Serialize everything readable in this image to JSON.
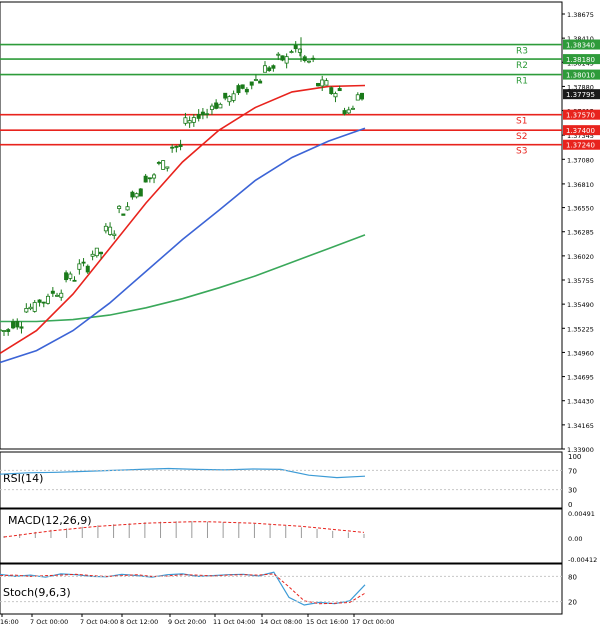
{
  "chart_data": {
    "type": "candlestick",
    "timeframe_note": "",
    "price_axis": {
      "ticks": [
        "1.38675",
        "1.38410",
        "1.38145",
        "1.37880",
        "1.37615",
        "1.37345",
        "1.37080",
        "1.36810",
        "1.36550",
        "1.36285",
        "1.36020",
        "1.35755",
        "1.35490",
        "1.35225",
        "1.34960",
        "1.34695",
        "1.34430",
        "1.34165",
        "1.33900"
      ],
      "ylim": [
        1.339,
        1.3872
      ],
      "current_price": "1.37795"
    },
    "levels": [
      {
        "label": "R3",
        "value": 1.3834,
        "value_text": "1.38340",
        "color": "#2e9b3a"
      },
      {
        "label": "R2",
        "value": 1.3818,
        "value_text": "1.38180",
        "color": "#2e9b3a"
      },
      {
        "label": "R1",
        "value": 1.3801,
        "value_text": "1.38010",
        "color": "#2e9b3a"
      },
      {
        "label": "S1",
        "value": 1.3757,
        "value_text": "1.37570",
        "color": "#e8231d"
      },
      {
        "label": "S2",
        "value": 1.374,
        "value_text": "1.37400",
        "color": "#e8231d"
      },
      {
        "label": "S3",
        "value": 1.3724,
        "value_text": "1.37240",
        "color": "#e8231d"
      }
    ],
    "candle_anchors": [
      1.352,
      1.3528,
      1.3545,
      1.3553,
      1.3562,
      1.3578,
      1.359,
      1.3605,
      1.363,
      1.3652,
      1.3672,
      1.3688,
      1.3702,
      1.3722,
      1.3748,
      1.3758,
      1.3768,
      1.3775,
      1.3785,
      1.3795,
      1.3808,
      1.3818,
      1.3828,
      1.3815,
      1.379,
      1.3782,
      1.3762,
      1.3779
    ],
    "ema_fast": [
      1.3495,
      1.352,
      1.356,
      1.361,
      1.366,
      1.3705,
      1.374,
      1.3765,
      1.3782,
      1.3788,
      1.3789
    ],
    "ema_mid": [
      1.3485,
      1.3498,
      1.352,
      1.355,
      1.3585,
      1.362,
      1.3652,
      1.3685,
      1.371,
      1.3728,
      1.3742
    ],
    "ema_slow": [
      1.353,
      1.353,
      1.3532,
      1.3537,
      1.3545,
      1.3555,
      1.3567,
      1.358,
      1.3595,
      1.361,
      1.3625
    ],
    "x_labels": [
      "16:00",
      "7 Oct 00:00",
      "7 Oct 04:00",
      "8 Oct 12:00",
      "9 Oct 20:00",
      "11 Oct 04:00",
      "14 Oct 08:00",
      "15 Oct 16:00",
      "17 Oct 00:00"
    ],
    "rsi": {
      "label": "RSI(14)",
      "ticks": [
        "100",
        "70",
        "30",
        "0"
      ],
      "values": [
        62,
        65,
        66,
        68,
        70,
        72,
        74,
        72,
        71,
        73,
        72,
        60,
        55,
        58
      ]
    },
    "macd": {
      "label": "MACD(12,26,9)",
      "ticks": [
        "0.00491",
        "0.00",
        "-0.00412"
      ],
      "histogram": [
        0.0004,
        0.0008,
        0.0012,
        0.0016,
        0.0019,
        0.0022,
        0.0025,
        0.0027,
        0.0029,
        0.0031,
        0.0032,
        0.0033,
        0.0033,
        0.0032,
        0.0031,
        0.003,
        0.0028,
        0.0026,
        0.0024,
        0.0021,
        0.0018,
        0.0014,
        0.0011,
        0.0008
      ],
      "signal": [
        0.0002,
        0.0006,
        0.001,
        0.0014,
        0.0017,
        0.002,
        0.0023,
        0.0025,
        0.0027,
        0.0029,
        0.003,
        0.0031,
        0.0032,
        0.0032,
        0.0031,
        0.003,
        0.0029,
        0.0027,
        0.0025,
        0.0023,
        0.002,
        0.0017,
        0.0014,
        0.0011
      ]
    },
    "stoch": {
      "label": "Stoch(9,6,3)",
      "ticks": [
        "80",
        "20"
      ],
      "main": [
        85,
        80,
        83,
        78,
        86,
        84,
        80,
        79,
        85,
        82,
        78,
        84,
        86,
        80,
        82,
        84,
        85,
        81,
        90,
        30,
        12,
        18,
        15,
        22,
        60
      ],
      "signal": [
        82,
        83,
        80,
        82,
        83,
        85,
        82,
        80,
        82,
        84,
        80,
        81,
        84,
        83,
        81,
        83,
        84,
        83,
        86,
        55,
        22,
        15,
        16,
        18,
        40
      ]
    },
    "colors": {
      "up": "#1a7a1a",
      "down": "#1a7a1a",
      "ema_fast": "#e8231d",
      "ema_mid": "#3c64d6",
      "ema_slow": "#3aa85a",
      "current_box": "#1a1a1a",
      "indicator": "#3c9bd6",
      "signal": "#e8231d"
    }
  }
}
